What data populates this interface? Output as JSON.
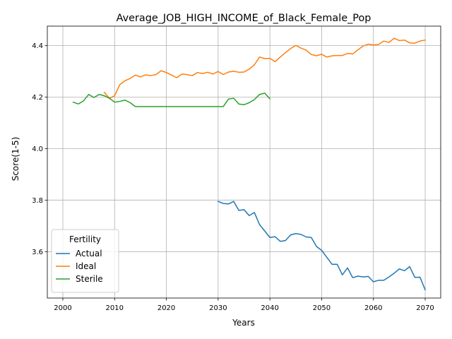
{
  "chart_data": {
    "type": "line",
    "title": "Average_JOB_HIGH_INCOME_of_Black_Female_Pop",
    "xlabel": "Years",
    "ylabel": "Score(1-5)",
    "xlim": [
      1997,
      2073
    ],
    "ylim": [
      3.42,
      4.475
    ],
    "xticks": [
      2000,
      2010,
      2020,
      2030,
      2040,
      2050,
      2060,
      2070
    ],
    "yticks": [
      3.6,
      3.8,
      4.0,
      4.2,
      4.4
    ],
    "grid": true,
    "legend": {
      "title": "Fertility",
      "placement": "lower-left"
    },
    "series": [
      {
        "name": "Actual",
        "color": "#1f77b4",
        "x": [
          2030,
          2031,
          2032,
          2033,
          2034,
          2035,
          2036,
          2037,
          2038,
          2039,
          2040,
          2041,
          2042,
          2043,
          2044,
          2045,
          2046,
          2047,
          2048,
          2049,
          2050,
          2051,
          2052,
          2053,
          2054,
          2055,
          2056,
          2057,
          2058,
          2059,
          2060,
          2061,
          2062,
          2063,
          2064,
          2065,
          2066,
          2067,
          2068,
          2069,
          2070
        ],
        "y": [
          3.795,
          3.787,
          3.785,
          3.795,
          3.76,
          3.763,
          3.74,
          3.752,
          3.705,
          3.68,
          3.655,
          3.658,
          3.64,
          3.643,
          3.665,
          3.67,
          3.667,
          3.657,
          3.655,
          3.62,
          3.605,
          3.578,
          3.551,
          3.551,
          3.51,
          3.537,
          3.499,
          3.505,
          3.502,
          3.504,
          3.483,
          3.489,
          3.489,
          3.502,
          3.516,
          3.533,
          3.526,
          3.542,
          3.5,
          3.501,
          3.452
        ]
      },
      {
        "name": "Ideal",
        "color": "#ff7f0e",
        "x": [
          2008,
          2009,
          2010,
          2011,
          2012,
          2013,
          2014,
          2015,
          2016,
          2017,
          2018,
          2019,
          2020,
          2021,
          2022,
          2023,
          2024,
          2025,
          2026,
          2027,
          2028,
          2029,
          2030,
          2031,
          2032,
          2033,
          2034,
          2035,
          2036,
          2037,
          2038,
          2039,
          2040,
          2041,
          2042,
          2043,
          2044,
          2045,
          2046,
          2047,
          2048,
          2049,
          2050,
          2051,
          2052,
          2053,
          2054,
          2055,
          2056,
          2057,
          2058,
          2059,
          2060,
          2061,
          2062,
          2063,
          2064,
          2065,
          2066,
          2067,
          2068,
          2069,
          2070
        ],
        "y": [
          4.218,
          4.195,
          4.205,
          4.248,
          4.263,
          4.272,
          4.285,
          4.278,
          4.286,
          4.283,
          4.287,
          4.302,
          4.295,
          4.285,
          4.275,
          4.289,
          4.287,
          4.283,
          4.295,
          4.291,
          4.296,
          4.289,
          4.299,
          4.287,
          4.297,
          4.3,
          4.296,
          4.297,
          4.308,
          4.325,
          4.355,
          4.349,
          4.35,
          4.337,
          4.355,
          4.372,
          4.388,
          4.4,
          4.39,
          4.382,
          4.365,
          4.36,
          4.366,
          4.355,
          4.36,
          4.361,
          4.361,
          4.369,
          4.367,
          4.383,
          4.398,
          4.405,
          4.402,
          4.404,
          4.417,
          4.412,
          4.428,
          4.419,
          4.421,
          4.41,
          4.409,
          4.417,
          4.421
        ]
      },
      {
        "name": "Sterile",
        "color": "#2ca02c",
        "x": [
          2002,
          2003,
          2004,
          2005,
          2006,
          2007,
          2008,
          2009,
          2010,
          2011,
          2012,
          2013,
          2014,
          2015,
          2016,
          2017,
          2018,
          2019,
          2020,
          2021,
          2022,
          2023,
          2024,
          2025,
          2026,
          2027,
          2028,
          2029,
          2030,
          2031,
          2032,
          2033,
          2034,
          2035,
          2036,
          2037,
          2038,
          2039,
          2040
        ],
        "y": [
          4.18,
          4.173,
          4.185,
          4.21,
          4.198,
          4.21,
          4.205,
          4.195,
          4.18,
          4.183,
          4.188,
          4.178,
          4.163,
          4.163,
          4.163,
          4.163,
          4.163,
          4.163,
          4.163,
          4.163,
          4.163,
          4.163,
          4.163,
          4.163,
          4.163,
          4.163,
          4.163,
          4.163,
          4.163,
          4.163,
          4.192,
          4.195,
          4.173,
          4.17,
          4.178,
          4.19,
          4.21,
          4.215,
          4.193
        ]
      }
    ]
  }
}
